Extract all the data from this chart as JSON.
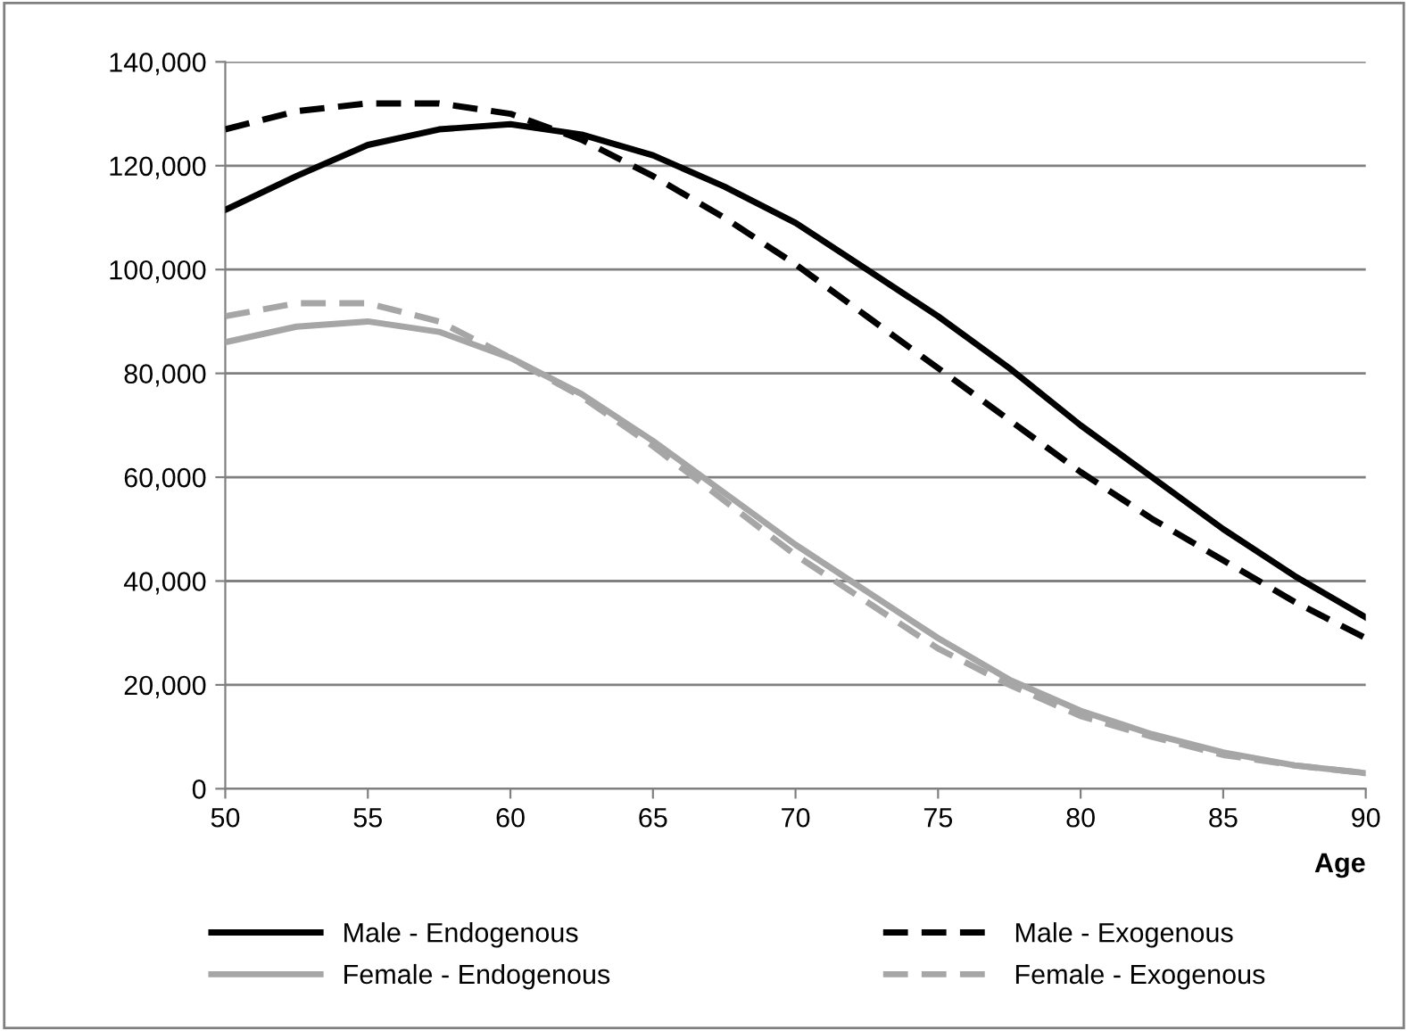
{
  "chart_data": {
    "type": "line",
    "xlabel": "Age",
    "x": [
      50,
      52.5,
      55,
      57.5,
      60,
      62.5,
      65,
      67.5,
      70,
      72.5,
      75,
      77.5,
      80,
      82.5,
      85,
      87.5,
      90
    ],
    "series": [
      {
        "name": "Male - Endogenous",
        "color": "#000000",
        "line_style": "solid",
        "values": [
          111500,
          118000,
          124000,
          127000,
          128000,
          126000,
          122000,
          116000,
          109000,
          100000,
          91000,
          81000,
          70000,
          60000,
          50000,
          41000,
          33000
        ]
      },
      {
        "name": "Female - Endogenous",
        "color": "#a6a6a6",
        "line_style": "solid",
        "values": [
          86000,
          89000,
          90000,
          88000,
          83000,
          76000,
          67000,
          57000,
          47000,
          38000,
          29000,
          21000,
          15000,
          10500,
          7000,
          4500,
          3000
        ]
      },
      {
        "name": "Male - Exogenous",
        "color": "#000000",
        "line_style": "dashed",
        "values": [
          127000,
          130500,
          132000,
          132000,
          130000,
          125000,
          118000,
          110000,
          101000,
          91000,
          81000,
          71000,
          61000,
          52000,
          44000,
          36000,
          29000
        ]
      },
      {
        "name": "Female - Exogenous",
        "color": "#a6a6a6",
        "line_style": "dashed",
        "values": [
          91000,
          93500,
          93500,
          90000,
          83000,
          75500,
          66000,
          55500,
          45000,
          36000,
          27000,
          20000,
          14000,
          10000,
          6500,
          4500,
          3000
        ]
      }
    ],
    "xlim": [
      50,
      90
    ],
    "xticks": [
      50,
      55,
      60,
      65,
      70,
      75,
      80,
      85,
      90
    ],
    "ylim": [
      0,
      140000
    ],
    "yticks": [
      {
        "value": 0,
        "label": "0"
      },
      {
        "value": 20000,
        "label": "20,000"
      },
      {
        "value": 40000,
        "label": "40,000"
      },
      {
        "value": 60000,
        "label": "60,000"
      },
      {
        "value": 80000,
        "label": "80,000"
      },
      {
        "value": 100000,
        "label": "100,000"
      },
      {
        "value": 120000,
        "label": "120,000"
      },
      {
        "value": 140000,
        "label": "140,000"
      }
    ],
    "grid": "y",
    "legend": "bottom",
    "marker": "none"
  }
}
